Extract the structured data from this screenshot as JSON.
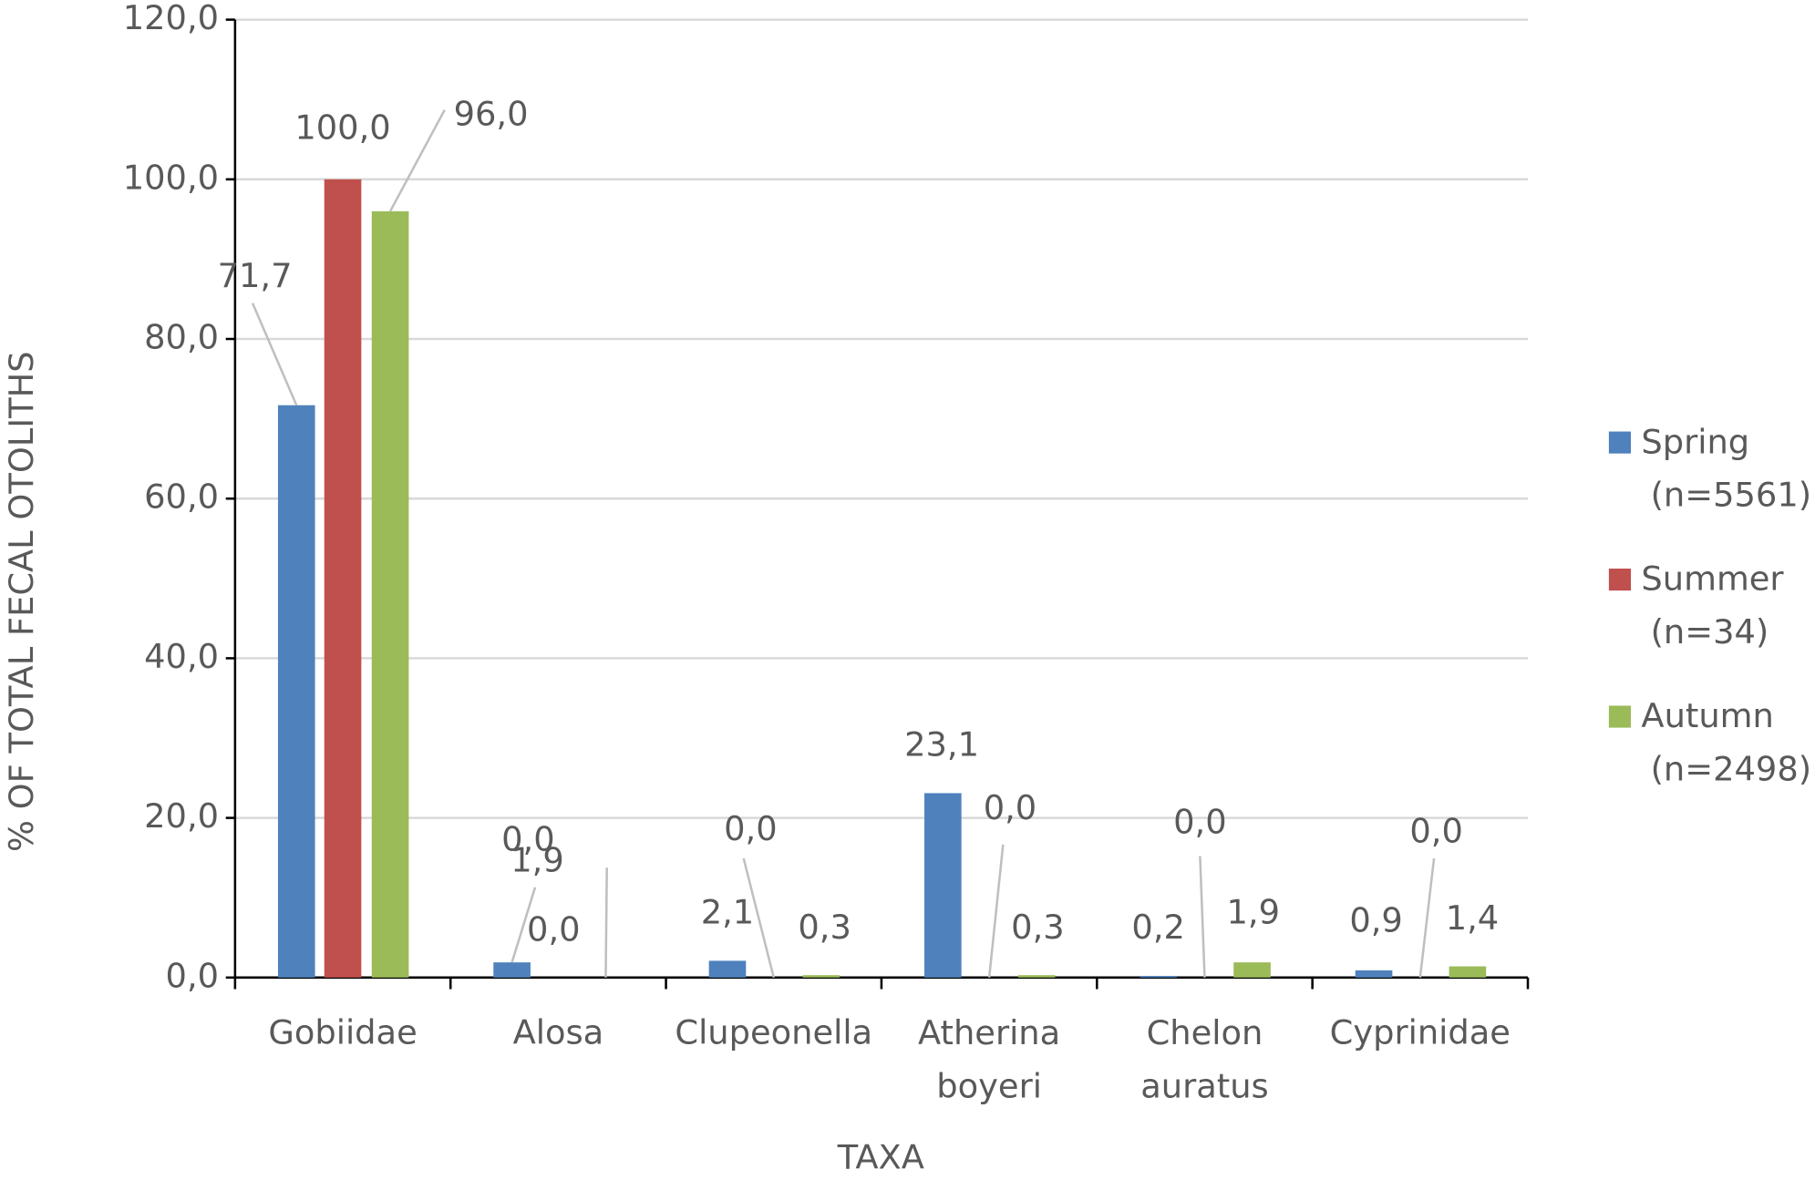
{
  "chart_data": {
    "type": "bar",
    "x_label": "TAXA",
    "y_label": "% OF TOTAL FECAL OTOLITHS",
    "categories": [
      "Gobiidae",
      "Alosa",
      "Clupeonella",
      "Atherina boyeri",
      "Chelon auratus",
      "Cyprinidae"
    ],
    "series": [
      {
        "name": "Spring (n=5561)",
        "color": "#4f81bd",
        "values": [
          71.7,
          1.9,
          2.1,
          23.1,
          0.2,
          0.9
        ],
        "value_labels": [
          "71,7",
          "1,9",
          "2,1",
          "23,1",
          "0,2",
          "0,9"
        ]
      },
      {
        "name": "Summer (n=34)",
        "color": "#c0504d",
        "values": [
          100,
          0,
          0,
          0,
          0,
          0
        ],
        "value_labels": [
          "100,0",
          "0,0",
          "0,0",
          "0,0",
          "0,0",
          "0,0"
        ]
      },
      {
        "name": "Autumn (n=2498)",
        "color": "#9bbb59",
        "values": [
          96,
          0,
          0.3,
          0.3,
          1.9,
          1.4
        ],
        "value_labels": [
          "96,0",
          "0,0",
          "0,3",
          "0,3",
          "1,9",
          "1,4"
        ]
      }
    ],
    "ylim": [
      0,
      120
    ],
    "yticks": [
      {
        "value": 0,
        "label": "0,0"
      },
      {
        "value": 20,
        "label": "20,0"
      },
      {
        "value": 40,
        "label": "40,0"
      },
      {
        "value": 60,
        "label": "60,0"
      },
      {
        "value": 80,
        "label": "80,0"
      },
      {
        "value": 100,
        "label": "100,0"
      },
      {
        "value": 120,
        "label": "120,0"
      }
    ],
    "grid": true,
    "legend": "right"
  }
}
